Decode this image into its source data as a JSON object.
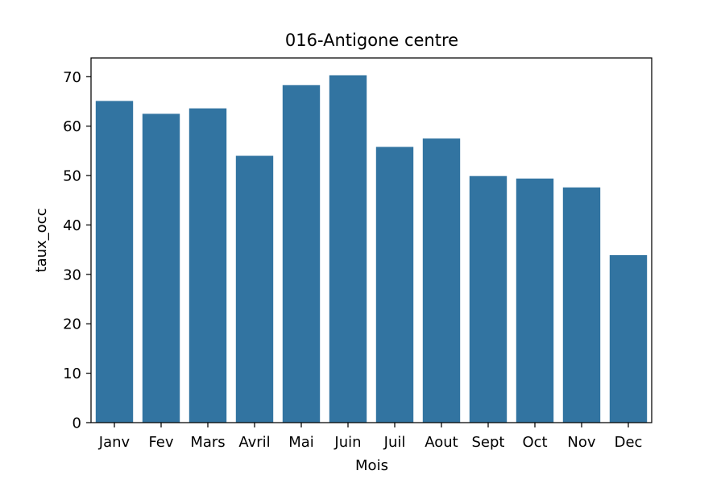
{
  "chart_data": {
    "type": "bar",
    "title": "016-Antigone centre",
    "xlabel": "Mois",
    "ylabel": "taux_occ",
    "categories": [
      "Janv",
      "Fev",
      "Mars",
      "Avril",
      "Mai",
      "Juin",
      "Juil",
      "Aout",
      "Sept",
      "Oct",
      "Nov",
      "Dec"
    ],
    "values": [
      65.1,
      62.5,
      63.6,
      54.0,
      68.3,
      70.3,
      55.8,
      57.5,
      49.9,
      49.4,
      47.6,
      33.9
    ],
    "ylim": [
      0,
      73.8
    ],
    "yticks": [
      0,
      10,
      20,
      30,
      40,
      50,
      60,
      70
    ],
    "grid": false,
    "legend": "none",
    "bar_color": "#3274a1"
  }
}
